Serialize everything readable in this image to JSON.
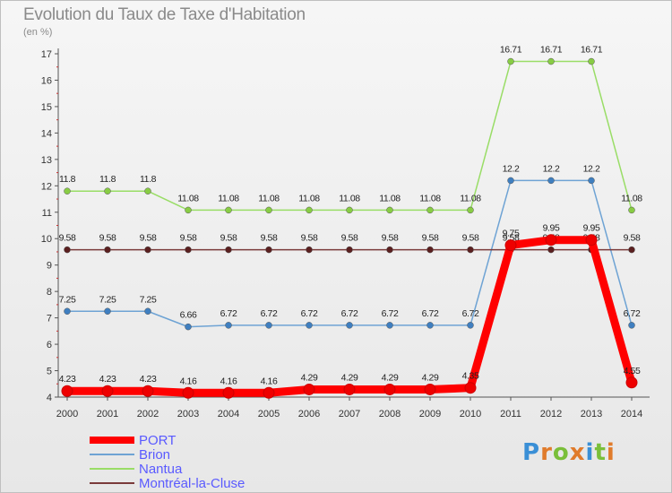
{
  "title": "Evolution du Taux de Taxe d'Habitation",
  "subtitle": "(en %)",
  "logo": {
    "text": "Proxiti",
    "letters": [
      "P",
      "r",
      "o",
      "x",
      "i",
      "t",
      "i"
    ],
    "colors": [
      "#3a8fd6",
      "#e07b2b",
      "#7abf3a",
      "#e07b2b",
      "#3a8fd6",
      "#7abf3a",
      "#e07b2b"
    ]
  },
  "chart_data": {
    "type": "line",
    "title": "Evolution du Taux de Taxe d'Habitation",
    "subtitle": "(en %)",
    "xlabel": "",
    "ylabel": "(en %)",
    "ylim": [
      4,
      17
    ],
    "yticks": [
      4,
      5,
      6,
      7,
      8,
      9,
      10,
      11,
      12,
      13,
      14,
      15,
      16,
      17
    ],
    "grid": false,
    "legend_position": "bottom-left",
    "x": [
      "2000",
      "2001",
      "2002",
      "2003",
      "2004",
      "2005",
      "2006",
      "2007",
      "2008",
      "2009",
      "2010",
      "2011",
      "2012",
      "2013",
      "2014"
    ],
    "series": [
      {
        "name": "Nantua",
        "color": "#99dd66",
        "marker_color": "#88cc44",
        "values": [
          11.8,
          11.8,
          11.8,
          11.08,
          11.08,
          11.08,
          11.08,
          11.08,
          11.08,
          11.08,
          11.08,
          16.71,
          16.71,
          16.71,
          11.08
        ],
        "labels": [
          "11.8",
          "11.8",
          "11.8",
          "11.08",
          "11.08",
          "11.08",
          "11.08",
          "11.08",
          "11.08",
          "11.08",
          "11.08",
          "16.71",
          "16.71",
          "16.71",
          "11.08"
        ]
      },
      {
        "name": "Brion",
        "color": "#6ea3d4",
        "marker_color": "#3f7fc0",
        "values": [
          7.25,
          7.25,
          7.25,
          6.66,
          6.72,
          6.72,
          6.72,
          6.72,
          6.72,
          6.72,
          6.72,
          12.2,
          12.2,
          12.2,
          6.72
        ],
        "labels": [
          "7.25",
          "7.25",
          "7.25",
          "6.66",
          "6.72",
          "6.72",
          "6.72",
          "6.72",
          "6.72",
          "6.72",
          "6.72",
          "12.2",
          "12.2",
          "12.2",
          "6.72"
        ]
      },
      {
        "name": "Montréal-la-Cluse",
        "color": "#7a3a3a",
        "marker_color": "#5a1f1f",
        "values": [
          9.58,
          9.58,
          9.58,
          9.58,
          9.58,
          9.58,
          9.58,
          9.58,
          9.58,
          9.58,
          9.58,
          9.58,
          9.58,
          9.58,
          9.58
        ],
        "labels": [
          "9.58",
          "9.58",
          "9.58",
          "9.58",
          "9.58",
          "9.58",
          "9.58",
          "9.58",
          "9.58",
          "9.58",
          "9.58",
          "9.58",
          "9.58",
          "9.58",
          "9.58"
        ]
      },
      {
        "name": "PORT",
        "color": "#ff0000",
        "marker_color": "#ee0000",
        "values": [
          4.23,
          4.23,
          4.23,
          4.16,
          4.16,
          4.16,
          4.29,
          4.29,
          4.29,
          4.29,
          4.35,
          9.75,
          9.95,
          9.95,
          4.55
        ],
        "labels": [
          "4.23",
          "4.23",
          "4.23",
          "4.16",
          "4.16",
          "4.16",
          "4.29",
          "4.29",
          "4.29",
          "4.29",
          "4.35",
          "9.75",
          "9.95",
          "9.95",
          "4.55"
        ]
      }
    ],
    "legend": [
      "PORT",
      "Brion",
      "Nantua",
      "Montréal-la-Cluse"
    ]
  }
}
